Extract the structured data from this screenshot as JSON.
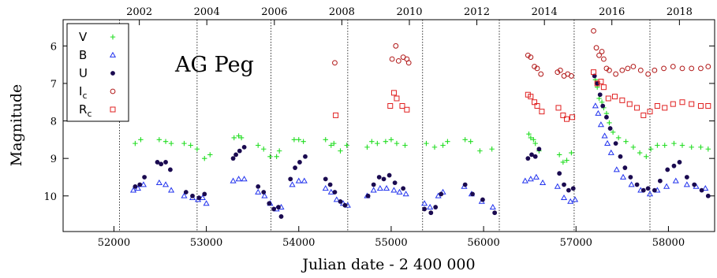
{
  "chart_data": {
    "type": "scatter",
    "title": "AG Peg",
    "xlabel": "Julian date - 2 400 000",
    "ylabel": "Magnitude",
    "xlim": [
      51450,
      58500
    ],
    "ylim": [
      10.95,
      5.3
    ],
    "y_inverted": true,
    "grid": false,
    "legend_position": "top-left",
    "x_ticks": [
      52000,
      53000,
      54000,
      55000,
      56000,
      57000,
      58000
    ],
    "y_ticks": [
      6,
      7,
      8,
      9,
      10
    ],
    "top_axis": {
      "label": "",
      "ticks": [
        {
          "label": "2002",
          "jd": 52275
        },
        {
          "label": "2004",
          "jd": 53005
        },
        {
          "label": "2006",
          "jd": 53736
        },
        {
          "label": "2008",
          "jd": 54466
        },
        {
          "label": "2010",
          "jd": 55197
        },
        {
          "label": "2012",
          "jd": 55927
        },
        {
          "label": "2014",
          "jd": 56658
        },
        {
          "label": "2016",
          "jd": 57388
        },
        {
          "label": "2018",
          "jd": 58119
        }
      ]
    },
    "vertical_lines": [
      52060,
      52900,
      53700,
      54530,
      55340,
      56170,
      56980,
      57800
    ],
    "series": [
      {
        "name": "V",
        "marker": "plus",
        "color": "#22dd22",
        "points": [
          [
            52230,
            8.6
          ],
          [
            52290,
            8.5
          ],
          [
            52490,
            8.5
          ],
          [
            52560,
            8.55
          ],
          [
            52620,
            8.6
          ],
          [
            52760,
            8.6
          ],
          [
            52830,
            8.65
          ],
          [
            52900,
            8.75
          ],
          [
            52980,
            9.0
          ],
          [
            53040,
            8.9
          ],
          [
            53300,
            8.45
          ],
          [
            53350,
            8.4
          ],
          [
            53380,
            8.45
          ],
          [
            53560,
            8.65
          ],
          [
            53620,
            8.75
          ],
          [
            53690,
            8.95
          ],
          [
            53760,
            8.95
          ],
          [
            53790,
            8.8
          ],
          [
            53950,
            8.5
          ],
          [
            54000,
            8.5
          ],
          [
            54050,
            8.55
          ],
          [
            54290,
            8.5
          ],
          [
            54350,
            8.65
          ],
          [
            54380,
            8.6
          ],
          [
            54450,
            8.8
          ],
          [
            54520,
            8.65
          ],
          [
            54740,
            8.7
          ],
          [
            54790,
            8.55
          ],
          [
            54850,
            8.6
          ],
          [
            54940,
            8.55
          ],
          [
            55000,
            8.5
          ],
          [
            55060,
            8.6
          ],
          [
            55150,
            8.65
          ],
          [
            55380,
            8.6
          ],
          [
            55470,
            8.7
          ],
          [
            55560,
            8.65
          ],
          [
            55610,
            8.55
          ],
          [
            55800,
            8.5
          ],
          [
            55860,
            8.55
          ],
          [
            55960,
            8.8
          ],
          [
            56090,
            8.75
          ],
          [
            56490,
            8.35
          ],
          [
            56510,
            8.45
          ],
          [
            56540,
            8.5
          ],
          [
            56560,
            8.6
          ],
          [
            56600,
            8.8
          ],
          [
            56820,
            8.9
          ],
          [
            56860,
            9.1
          ],
          [
            56900,
            9.05
          ],
          [
            56950,
            8.85
          ],
          [
            57210,
            6.9
          ],
          [
            57230,
            7.1
          ],
          [
            57250,
            7.4
          ],
          [
            57280,
            7.5
          ],
          [
            57300,
            7.65
          ],
          [
            57330,
            7.8
          ],
          [
            57360,
            8.05
          ],
          [
            57400,
            8.3
          ],
          [
            57460,
            8.45
          ],
          [
            57540,
            8.55
          ],
          [
            57620,
            8.7
          ],
          [
            57690,
            8.85
          ],
          [
            57760,
            8.95
          ],
          [
            57810,
            8.75
          ],
          [
            57880,
            8.65
          ],
          [
            57960,
            8.65
          ],
          [
            58060,
            8.6
          ],
          [
            58150,
            8.65
          ],
          [
            58250,
            8.7
          ],
          [
            58350,
            8.7
          ],
          [
            58430,
            8.75
          ]
        ]
      },
      {
        "name": "B",
        "marker": "triangle",
        "color": "#2233ee",
        "points": [
          [
            52210,
            9.85
          ],
          [
            52260,
            9.8
          ],
          [
            52320,
            9.7
          ],
          [
            52490,
            9.65
          ],
          [
            52560,
            9.7
          ],
          [
            52620,
            9.85
          ],
          [
            52760,
            10.0
          ],
          [
            52850,
            10.05
          ],
          [
            52910,
            10.1
          ],
          [
            52960,
            10.05
          ],
          [
            53000,
            10.2
          ],
          [
            53290,
            9.6
          ],
          [
            53350,
            9.55
          ],
          [
            53410,
            9.55
          ],
          [
            53560,
            9.9
          ],
          [
            53630,
            10.0
          ],
          [
            53690,
            10.2
          ],
          [
            53760,
            10.35
          ],
          [
            53810,
            10.3
          ],
          [
            53930,
            9.7
          ],
          [
            54000,
            9.6
          ],
          [
            54060,
            9.6
          ],
          [
            54290,
            9.8
          ],
          [
            54350,
            9.9
          ],
          [
            54410,
            10.1
          ],
          [
            54480,
            10.2
          ],
          [
            54530,
            10.25
          ],
          [
            54740,
            10.0
          ],
          [
            54810,
            9.85
          ],
          [
            54880,
            9.8
          ],
          [
            54950,
            9.8
          ],
          [
            55030,
            9.85
          ],
          [
            55090,
            9.9
          ],
          [
            55160,
            9.95
          ],
          [
            55360,
            10.2
          ],
          [
            55420,
            10.3
          ],
          [
            55510,
            10.0
          ],
          [
            55560,
            9.9
          ],
          [
            55790,
            9.75
          ],
          [
            55870,
            9.95
          ],
          [
            55980,
            10.15
          ],
          [
            56100,
            10.3
          ],
          [
            56450,
            9.6
          ],
          [
            56510,
            9.55
          ],
          [
            56570,
            9.5
          ],
          [
            56640,
            9.65
          ],
          [
            56800,
            9.75
          ],
          [
            56870,
            10.05
          ],
          [
            56940,
            10.15
          ],
          [
            56990,
            10.1
          ],
          [
            57210,
            7.6
          ],
          [
            57240,
            7.8
          ],
          [
            57270,
            8.1
          ],
          [
            57310,
            8.4
          ],
          [
            57340,
            8.6
          ],
          [
            57380,
            8.85
          ],
          [
            57440,
            9.3
          ],
          [
            57510,
            9.5
          ],
          [
            57600,
            9.7
          ],
          [
            57700,
            9.85
          ],
          [
            57800,
            9.95
          ],
          [
            57880,
            9.85
          ],
          [
            57980,
            9.75
          ],
          [
            58080,
            9.6
          ],
          [
            58200,
            9.7
          ],
          [
            58300,
            9.75
          ],
          [
            58400,
            9.8
          ]
        ]
      },
      {
        "name": "U",
        "marker": "circle-filled",
        "color": "#1a0a50",
        "points": [
          [
            52230,
            9.75
          ],
          [
            52280,
            9.7
          ],
          [
            52330,
            9.5
          ],
          [
            52470,
            9.1
          ],
          [
            52510,
            9.15
          ],
          [
            52560,
            9.1
          ],
          [
            52610,
            9.3
          ],
          [
            52780,
            9.9
          ],
          [
            52850,
            10.0
          ],
          [
            52920,
            10.05
          ],
          [
            52980,
            9.95
          ],
          [
            53290,
            9.0
          ],
          [
            53320,
            8.9
          ],
          [
            53360,
            8.8
          ],
          [
            53410,
            8.7
          ],
          [
            53560,
            9.75
          ],
          [
            53620,
            9.9
          ],
          [
            53680,
            10.2
          ],
          [
            53730,
            10.35
          ],
          [
            53780,
            10.3
          ],
          [
            53810,
            10.55
          ],
          [
            53910,
            9.55
          ],
          [
            53960,
            9.25
          ],
          [
            54010,
            9.1
          ],
          [
            54070,
            8.95
          ],
          [
            54290,
            9.55
          ],
          [
            54340,
            9.7
          ],
          [
            54390,
            9.9
          ],
          [
            54450,
            10.15
          ],
          [
            54500,
            10.25
          ],
          [
            54750,
            10.0
          ],
          [
            54810,
            9.7
          ],
          [
            54870,
            9.5
          ],
          [
            54920,
            9.55
          ],
          [
            54980,
            9.45
          ],
          [
            55040,
            9.65
          ],
          [
            55130,
            9.8
          ],
          [
            55360,
            10.35
          ],
          [
            55430,
            10.45
          ],
          [
            55480,
            10.3
          ],
          [
            55540,
            9.95
          ],
          [
            55800,
            9.7
          ],
          [
            55880,
            9.95
          ],
          [
            55990,
            10.1
          ],
          [
            56120,
            10.45
          ],
          [
            56480,
            9.0
          ],
          [
            56520,
            8.9
          ],
          [
            56560,
            8.95
          ],
          [
            56600,
            8.75
          ],
          [
            56820,
            9.4
          ],
          [
            56870,
            9.7
          ],
          [
            56920,
            9.85
          ],
          [
            56970,
            9.8
          ],
          [
            57200,
            6.8
          ],
          [
            57230,
            7.0
          ],
          [
            57260,
            7.3
          ],
          [
            57290,
            7.6
          ],
          [
            57330,
            7.9
          ],
          [
            57370,
            8.2
          ],
          [
            57430,
            8.6
          ],
          [
            57480,
            8.95
          ],
          [
            57530,
            9.25
          ],
          [
            57590,
            9.5
          ],
          [
            57660,
            9.7
          ],
          [
            57730,
            9.85
          ],
          [
            57780,
            9.8
          ],
          [
            57850,
            9.85
          ],
          [
            57910,
            9.6
          ],
          [
            57990,
            9.3
          ],
          [
            58060,
            9.2
          ],
          [
            58120,
            9.1
          ],
          [
            58200,
            9.5
          ],
          [
            58280,
            9.7
          ],
          [
            58360,
            9.85
          ],
          [
            58430,
            10.0
          ]
        ]
      },
      {
        "name": "Ic",
        "name_base": "I",
        "name_sub": "c",
        "marker": "circle-open",
        "color": "#b01515",
        "points": [
          [
            54390,
            6.45
          ],
          [
            55010,
            6.35
          ],
          [
            55050,
            6.0
          ],
          [
            55080,
            6.4
          ],
          [
            55130,
            6.3
          ],
          [
            55170,
            6.35
          ],
          [
            55190,
            6.45
          ],
          [
            56480,
            6.25
          ],
          [
            56510,
            6.3
          ],
          [
            56550,
            6.55
          ],
          [
            56580,
            6.6
          ],
          [
            56620,
            6.75
          ],
          [
            56800,
            6.7
          ],
          [
            56830,
            6.65
          ],
          [
            56870,
            6.8
          ],
          [
            56910,
            6.75
          ],
          [
            56950,
            6.8
          ],
          [
            57190,
            5.6
          ],
          [
            57220,
            6.05
          ],
          [
            57250,
            6.25
          ],
          [
            57280,
            6.15
          ],
          [
            57300,
            6.35
          ],
          [
            57330,
            6.6
          ],
          [
            57360,
            6.65
          ],
          [
            57430,
            6.75
          ],
          [
            57500,
            6.65
          ],
          [
            57560,
            6.6
          ],
          [
            57620,
            6.55
          ],
          [
            57700,
            6.65
          ],
          [
            57780,
            6.75
          ],
          [
            57850,
            6.65
          ],
          [
            57950,
            6.6
          ],
          [
            58050,
            6.55
          ],
          [
            58150,
            6.6
          ],
          [
            58250,
            6.6
          ],
          [
            58350,
            6.6
          ],
          [
            58430,
            6.55
          ]
        ]
      },
      {
        "name": "Rc",
        "name_base": "R",
        "name_sub": "c",
        "marker": "square-open",
        "color": "#e02020",
        "points": [
          [
            54400,
            7.85
          ],
          [
            54990,
            7.6
          ],
          [
            55030,
            7.25
          ],
          [
            55060,
            7.4
          ],
          [
            55120,
            7.6
          ],
          [
            55170,
            7.7
          ],
          [
            56480,
            7.3
          ],
          [
            56510,
            7.35
          ],
          [
            56550,
            7.5
          ],
          [
            56580,
            7.6
          ],
          [
            56630,
            7.75
          ],
          [
            56810,
            7.65
          ],
          [
            56860,
            7.85
          ],
          [
            56900,
            7.95
          ],
          [
            56960,
            7.9
          ],
          [
            57190,
            6.7
          ],
          [
            57230,
            7.0
          ],
          [
            57270,
            6.95
          ],
          [
            57300,
            7.1
          ],
          [
            57350,
            7.4
          ],
          [
            57420,
            7.35
          ],
          [
            57500,
            7.45
          ],
          [
            57580,
            7.55
          ],
          [
            57660,
            7.65
          ],
          [
            57730,
            7.85
          ],
          [
            57800,
            7.75
          ],
          [
            57880,
            7.6
          ],
          [
            57960,
            7.65
          ],
          [
            58050,
            7.55
          ],
          [
            58150,
            7.5
          ],
          [
            58250,
            7.55
          ],
          [
            58350,
            7.6
          ],
          [
            58430,
            7.6
          ]
        ]
      }
    ]
  }
}
